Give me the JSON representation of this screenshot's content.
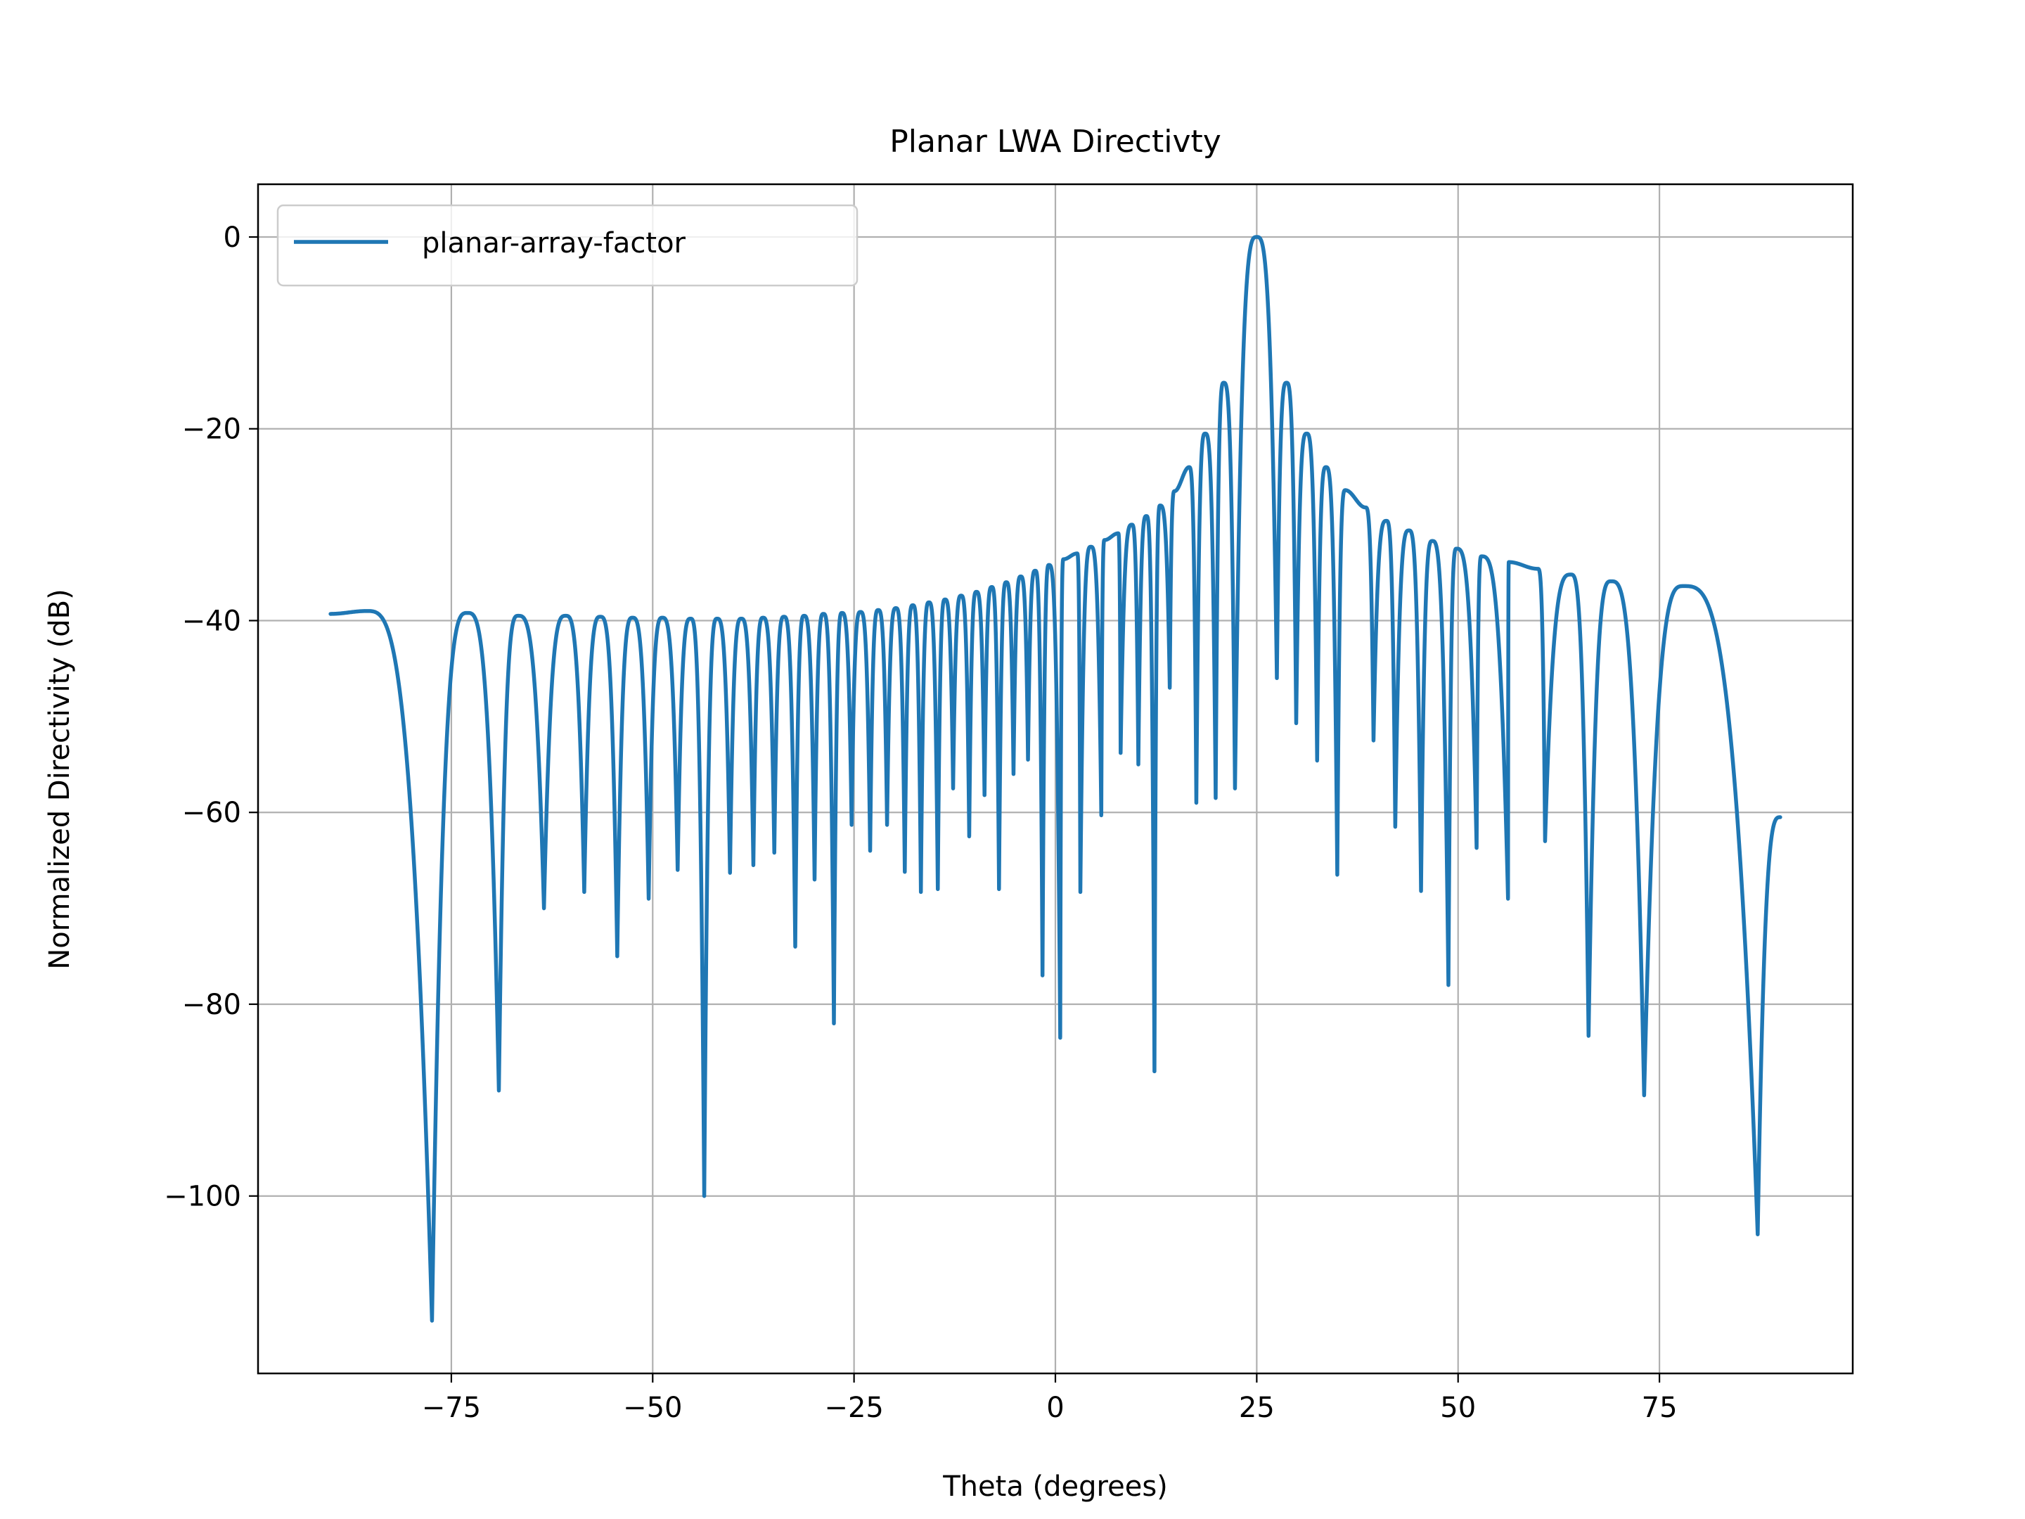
{
  "chart_data": {
    "type": "line",
    "title": "Planar LWA Directivty",
    "xlabel": "Theta (degrees)",
    "ylabel": "Normalized Directivity (dB)",
    "xlim": [
      -99,
      99
    ],
    "ylim": [
      -118.5,
      5.5
    ],
    "xticks": [
      -75,
      -50,
      -25,
      0,
      25,
      50,
      75
    ],
    "yticks": [
      0,
      -20,
      -40,
      -60,
      -80,
      -100
    ],
    "xtick_labels": [
      "−75",
      "−50",
      "−25",
      "0",
      "25",
      "50",
      "75"
    ],
    "ytick_labels": [
      "0",
      "−20",
      "−40",
      "−60",
      "−80",
      "−100"
    ],
    "grid": true,
    "legend_position": "upper-left",
    "line_color": "#1f77b4",
    "series": [
      {
        "name": "planar-array-factor",
        "x_range": [
          -90,
          90
        ],
        "peaks": [
          [
            -90,
            -39.3
          ],
          [
            -85.5,
            -39.0
          ],
          [
            -73,
            -39.2
          ],
          [
            -66.7,
            -39.5
          ],
          [
            -60.8,
            -39.5
          ],
          [
            -56.5,
            -39.6
          ],
          [
            -52.5,
            -39.7
          ],
          [
            -48.8,
            -39.7
          ],
          [
            -45.3,
            -39.8
          ],
          [
            -42,
            -39.8
          ],
          [
            -39,
            -39.8
          ],
          [
            -36.3,
            -39.7
          ],
          [
            -33.7,
            -39.6
          ],
          [
            -31.2,
            -39.5
          ],
          [
            -28.8,
            -39.3
          ],
          [
            -26.5,
            -39.2
          ],
          [
            -24.2,
            -39.1
          ],
          [
            -22,
            -38.9
          ],
          [
            -19.8,
            -38.7
          ],
          [
            -17.7,
            -38.4
          ],
          [
            -15.7,
            -38.1
          ],
          [
            -13.7,
            -37.8
          ],
          [
            -11.7,
            -37.4
          ],
          [
            -9.8,
            -37.0
          ],
          [
            -7.9,
            -36.5
          ],
          [
            -6.1,
            -36.0
          ],
          [
            -4.3,
            -35.4
          ],
          [
            -2.5,
            -34.8
          ],
          [
            -0.8,
            -34.2
          ],
          [
            1,
            -33.6
          ],
          [
            2.7,
            -33.0
          ],
          [
            4.4,
            -32.3
          ],
          [
            6.1,
            -31.6
          ],
          [
            7.8,
            -30.9
          ],
          [
            9.5,
            -30.0
          ],
          [
            11.3,
            -29.1
          ],
          [
            13,
            -28.0
          ],
          [
            14.8,
            -26.5
          ],
          [
            16.6,
            -24.0
          ],
          [
            18.6,
            -20.5
          ],
          [
            20.9,
            -15.2
          ],
          [
            25,
            0
          ],
          [
            28.7,
            -15.2
          ],
          [
            31.2,
            -20.5
          ],
          [
            33.6,
            -24.0
          ],
          [
            36,
            -26.4
          ],
          [
            38.5,
            -28.2
          ],
          [
            41.1,
            -29.6
          ],
          [
            43.9,
            -30.6
          ],
          [
            46.8,
            -31.7
          ],
          [
            49.8,
            -32.5
          ],
          [
            52.9,
            -33.3
          ],
          [
            56.3,
            -33.9
          ],
          [
            59.9,
            -34.6
          ],
          [
            64,
            -35.2
          ],
          [
            69,
            -35.9
          ],
          [
            78,
            -36.4
          ],
          [
            90,
            -60.5
          ]
        ],
        "nulls": [
          [
            -77.4,
            -113.0
          ],
          [
            -69.1,
            -89.0
          ],
          [
            -63.5,
            -70.0
          ],
          [
            -58.5,
            -68.3
          ],
          [
            -54.4,
            -75.0
          ],
          [
            -50.5,
            -69.0
          ],
          [
            -46.9,
            -66.0
          ],
          [
            -43.6,
            -100.0
          ],
          [
            -40.4,
            -66.3
          ],
          [
            -37.5,
            -65.5
          ],
          [
            -34.9,
            -64.2
          ],
          [
            -32.3,
            -74.0
          ],
          [
            -29.9,
            -67.0
          ],
          [
            -27.5,
            -82.0
          ],
          [
            -25.3,
            -61.3
          ],
          [
            -23,
            -64.0
          ],
          [
            -20.9,
            -61.3
          ],
          [
            -18.7,
            -66.2
          ],
          [
            -16.7,
            -68.3
          ],
          [
            -14.6,
            -68.0
          ],
          [
            -12.7,
            -57.5
          ],
          [
            -10.7,
            -62.5
          ],
          [
            -8.8,
            -58.2
          ],
          [
            -7,
            -68.0
          ],
          [
            -5.2,
            -56.0
          ],
          [
            -3.4,
            -54.5
          ],
          [
            -1.6,
            -77.0
          ],
          [
            0.6,
            -83.5
          ],
          [
            3.1,
            -68.3
          ],
          [
            5.7,
            -60.3
          ],
          [
            8.1,
            -53.8
          ],
          [
            10.3,
            -55.0
          ],
          [
            12.3,
            -87.0
          ],
          [
            14.2,
            -47.0
          ],
          [
            17.5,
            -59.0
          ],
          [
            19.9,
            -58.5
          ],
          [
            22.3,
            -57.5
          ],
          [
            27.5,
            -46.0
          ],
          [
            29.9,
            -50.7
          ],
          [
            32.5,
            -54.6
          ],
          [
            35,
            -66.5
          ],
          [
            39.5,
            -52.5
          ],
          [
            42.2,
            -61.5
          ],
          [
            45.4,
            -68.2
          ],
          [
            48.8,
            -78.0
          ],
          [
            52.3,
            -63.7
          ],
          [
            56.2,
            -69.0
          ],
          [
            60.8,
            -63.0
          ],
          [
            66.2,
            -83.3
          ],
          [
            73.1,
            -89.5
          ],
          [
            87.2,
            -104.0
          ]
        ]
      }
    ]
  }
}
